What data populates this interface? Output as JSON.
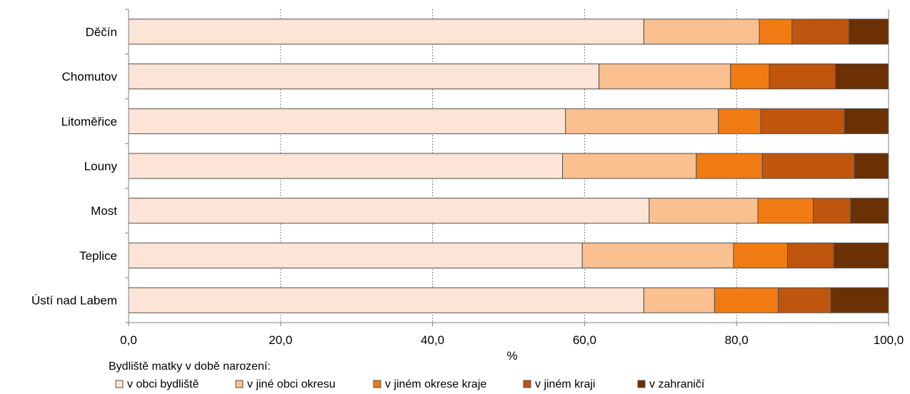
{
  "chart_data": {
    "type": "bar",
    "orientation": "horizontal",
    "stacked": true,
    "categories": [
      "Děčín",
      "Chomutov",
      "Litoměřice",
      "Louny",
      "Most",
      "Teplice",
      "Ústí nad Labem"
    ],
    "series": [
      {
        "name": "v obci bydliště",
        "color": "#fce4d6",
        "values": [
          67.8,
          61.9,
          57.5,
          57.1,
          68.5,
          59.7,
          67.8
        ]
      },
      {
        "name": "v jiné obci okresu",
        "color": "#fac090",
        "values": [
          15.2,
          17.3,
          20.1,
          17.6,
          14.3,
          19.9,
          9.3
        ]
      },
      {
        "name": "v jiném okrese kraje",
        "color": "#f07b12",
        "values": [
          4.3,
          5.1,
          5.6,
          8.7,
          7.3,
          7.1,
          8.4
        ]
      },
      {
        "name": "v jiném kraji",
        "color": "#c0550e",
        "values": [
          7.5,
          8.7,
          11.0,
          12.1,
          4.9,
          6.1,
          6.9
        ]
      },
      {
        "name": "v zahraničí",
        "color": "#6b3004",
        "values": [
          5.2,
          7.0,
          5.8,
          4.5,
          5.0,
          7.2,
          7.6
        ]
      }
    ],
    "xlim": [
      0,
      100
    ],
    "xticks": [
      "0,0",
      "20,0",
      "40,0",
      "60,0",
      "80,0",
      "100,0"
    ],
    "xlabel": "%",
    "grid": "vertical dotted",
    "legend_title": "Bydliště matky v době narození:",
    "legend_position": "bottom"
  }
}
